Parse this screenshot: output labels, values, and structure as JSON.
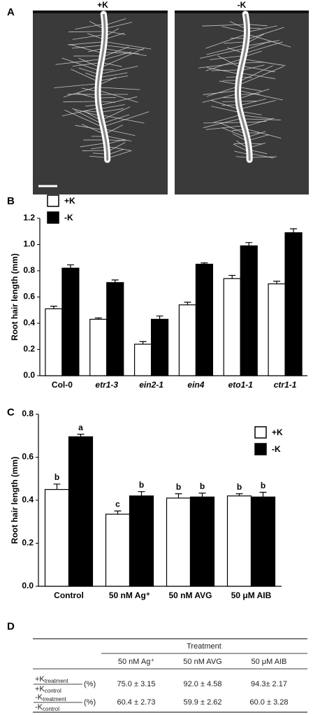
{
  "panel_a": {
    "label": "A",
    "images": [
      {
        "title": "+K"
      },
      {
        "title": "-K"
      }
    ]
  },
  "chart_data": [
    {
      "type": "bar",
      "panel_label": "B",
      "ylabel": "Root hair length (mm)",
      "categories": [
        "Col-0",
        "etr1-3",
        "ein2-1",
        "ein4",
        "eto1-1",
        "ctr1-1"
      ],
      "category_italic": [
        false,
        true,
        true,
        true,
        true,
        true
      ],
      "series": [
        {
          "name": "+K",
          "color": "#ffffff",
          "values": [
            0.51,
            0.43,
            0.24,
            0.54,
            0.74,
            0.7
          ],
          "errors": [
            0.02,
            0.01,
            0.02,
            0.02,
            0.025,
            0.02
          ]
        },
        {
          "name": "-K",
          "color": "#000000",
          "values": [
            0.82,
            0.71,
            0.43,
            0.85,
            0.99,
            1.09
          ],
          "errors": [
            0.025,
            0.02,
            0.025,
            0.01,
            0.025,
            0.03
          ]
        }
      ],
      "ylim": [
        0,
        1.2
      ],
      "yticks": [
        {
          "value": 0,
          "label": "0.0"
        },
        0.2,
        0.4,
        0.6,
        0.8,
        {
          "value": 1,
          "label": "1.0"
        },
        1.2
      ],
      "legend": "upper left"
    },
    {
      "type": "bar",
      "panel_label": "C",
      "ylabel": "Root hair length (mm)",
      "categories": [
        "Control",
        "50 nM Ag⁺",
        "50 nM AVG",
        "50 μM AIB"
      ],
      "category_italic": [
        false,
        false,
        false,
        false
      ],
      "series": [
        {
          "name": "+K",
          "color": "#ffffff",
          "values": [
            0.45,
            0.335,
            0.41,
            0.42
          ],
          "errors": [
            0.025,
            0.015,
            0.02,
            0.01
          ],
          "letters": [
            "b",
            "c",
            "b",
            "b"
          ]
        },
        {
          "name": "-K",
          "color": "#000000",
          "values": [
            0.695,
            0.42,
            0.415,
            0.415
          ],
          "errors": [
            0.012,
            0.02,
            0.018,
            0.022
          ],
          "letters": [
            "a",
            "b",
            "b",
            "b"
          ]
        }
      ],
      "ylim": [
        0,
        0.8
      ],
      "yticks": [
        {
          "value": 0,
          "label": "0.0"
        },
        0.2,
        0.4,
        0.6,
        0.8
      ],
      "legend": "upper right"
    }
  ],
  "panel_d": {
    "label": "D",
    "header": "Treatment",
    "columns": [
      "50 nM Ag⁺",
      "50 nM AVG",
      "50 μM AIB"
    ],
    "rows": [
      {
        "numerator": "+K",
        "numerator_sub": "treatment",
        "denominator": "+K",
        "denominator_sub": "control",
        "unit": "(%)",
        "cells": [
          "75.0 ± 3.15",
          "92.0 ± 4.58",
          "94.3± 2.17"
        ]
      },
      {
        "numerator": "-K",
        "numerator_sub": "treatment",
        "denominator": "-K",
        "denominator_sub": "control",
        "unit": "(%)",
        "cells": [
          "60.4 ± 2.73",
          "59.9 ± 2.62",
          "60.0 ± 3.28"
        ]
      }
    ]
  }
}
